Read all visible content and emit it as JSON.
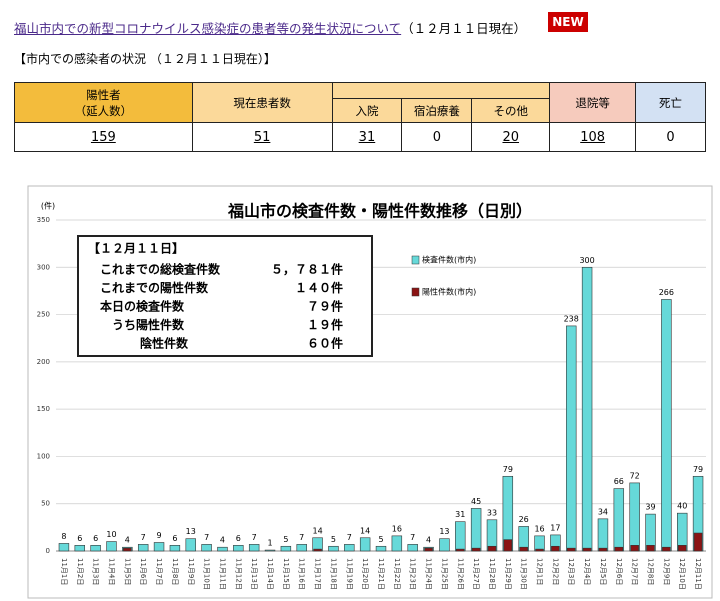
{
  "header": {
    "title": "福山市内での新型コロナウイルス感染症の患者等の発生状況について",
    "date": "（１２月１１日現在）",
    "badge": "NEW"
  },
  "section": {
    "title": "【市内での感染者の状況 （１２月１１日現在）】"
  },
  "table": {
    "positive": [
      "陽性者",
      "（延人数）"
    ],
    "current": "現在患者数",
    "sub": [
      "入院",
      "宿泊療養",
      "その他"
    ],
    "discharged": "退院等",
    "deaths": "死亡",
    "rows": [
      [
        "159",
        "51",
        "31",
        "0",
        "20",
        "108",
        "0"
      ]
    ]
  },
  "chart_data": {
    "type": "bar",
    "title": "福山市の検査件数・陽性件数推移（日別）",
    "y_label": "(件)",
    "categories": [
      "11月1日",
      "11月2日",
      "11月3日",
      "11月4日",
      "11月5日",
      "11月6日",
      "11月7日",
      "11月8日",
      "11月9日",
      "11月10日",
      "11月11日",
      "11月12日",
      "11月13日",
      "11月14日",
      "11月15日",
      "11月16日",
      "11月17日",
      "11月18日",
      "11月19日",
      "11月20日",
      "11月21日",
      "11月22日",
      "11月23日",
      "11月24日",
      "11月25日",
      "11月26日",
      "11月27日",
      "11月28日",
      "11月29日",
      "11月30日",
      "12月1日",
      "12月2日",
      "12月3日",
      "12月4日",
      "12月5日",
      "12月6日",
      "12月7日",
      "12月8日",
      "12月9日",
      "12月10日",
      "12月11日"
    ],
    "series": [
      {
        "name": "検査件数(市内)",
        "color": "#66d9d9",
        "values": [
          8,
          6,
          6,
          10,
          4,
          7,
          9,
          6,
          13,
          7,
          4,
          6,
          7,
          1,
          5,
          7,
          14,
          5,
          7,
          14,
          5,
          16,
          7,
          4,
          13,
          31,
          45,
          33,
          79,
          26,
          16,
          17,
          238,
          300,
          34,
          66,
          72,
          39,
          266,
          40,
          79
        ]
      },
      {
        "name": "陽性件数(市内)",
        "color": "#8b1414",
        "values": [
          0,
          0,
          0,
          0,
          3,
          0,
          0,
          0,
          0,
          0,
          0,
          0,
          0,
          0,
          0,
          0,
          2,
          0,
          0,
          0,
          0,
          0,
          0,
          3,
          0,
          2,
          3,
          5,
          12,
          4,
          2,
          5,
          3,
          3,
          3,
          4,
          6,
          6,
          4,
          6,
          19
        ]
      }
    ],
    "ylim": [
      0,
      350
    ],
    "yticks": [
      0,
      50,
      100,
      150,
      200,
      250,
      300,
      350
    ],
    "grid": true,
    "annotation": {
      "title": "【１２月１１日】",
      "rows": [
        [
          "これまでの総検査件数",
          "５，７８１件"
        ],
        [
          "これまでの陽性件数",
          "１４０件"
        ],
        [
          "本日の検査件数",
          "７９件"
        ],
        [
          "うち陽性件数",
          "１９件"
        ],
        [
          "陰性件数",
          "６０件"
        ]
      ]
    }
  }
}
